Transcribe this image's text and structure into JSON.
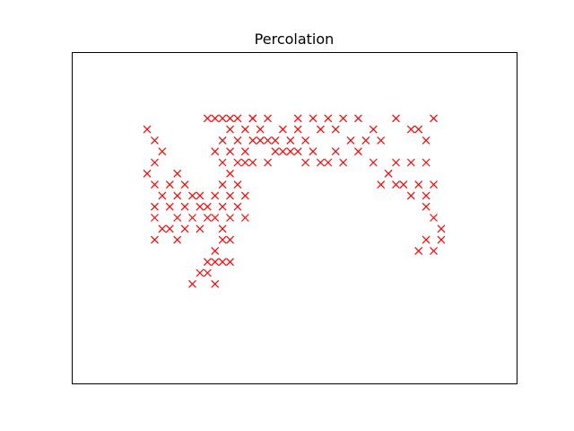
{
  "chart_data": {
    "type": "scatter",
    "title": "Percolation",
    "xlabel": "",
    "ylabel": "",
    "xlim": [
      0,
      59
    ],
    "ylim": [
      0,
      30
    ],
    "marker": "x",
    "marker_color": "#ff0000",
    "grid": false,
    "axis_ticks": false,
    "series": [
      {
        "points": [
          [
            10,
            23
          ],
          [
            11,
            22
          ],
          [
            12,
            21
          ],
          [
            11,
            20
          ],
          [
            10,
            19
          ],
          [
            11,
            18
          ],
          [
            12,
            17
          ],
          [
            11,
            16
          ],
          [
            11,
            15
          ],
          [
            12,
            14
          ],
          [
            11,
            13
          ],
          [
            13,
            18
          ],
          [
            13,
            16
          ],
          [
            13,
            14
          ],
          [
            14,
            19
          ],
          [
            14,
            17
          ],
          [
            15,
            18
          ],
          [
            14,
            15
          ],
          [
            15,
            16
          ],
          [
            14,
            13
          ],
          [
            15,
            14
          ],
          [
            16,
            17
          ],
          [
            16,
            15
          ],
          [
            17,
            17
          ],
          [
            17,
            16
          ],
          [
            17,
            14
          ],
          [
            18,
            16
          ],
          [
            18,
            15
          ],
          [
            19,
            17
          ],
          [
            19,
            15
          ],
          [
            19,
            11
          ],
          [
            18,
            11
          ],
          [
            17,
            10
          ],
          [
            16,
            9
          ],
          [
            20,
            18
          ],
          [
            20,
            16
          ],
          [
            20,
            14
          ],
          [
            21,
            15
          ],
          [
            21,
            13
          ],
          [
            21,
            11
          ],
          [
            20,
            11
          ],
          [
            19,
            12
          ],
          [
            19,
            9
          ],
          [
            18,
            10
          ],
          [
            20,
            13
          ],
          [
            21,
            17
          ],
          [
            21,
            19
          ],
          [
            22,
            16
          ],
          [
            22,
            18
          ],
          [
            22,
            20
          ],
          [
            23,
            15
          ],
          [
            23,
            17
          ],
          [
            23,
            20
          ],
          [
            19,
            21
          ],
          [
            20,
            22
          ],
          [
            21,
            21
          ],
          [
            22,
            22
          ],
          [
            23,
            21
          ],
          [
            24,
            22
          ],
          [
            25,
            23
          ],
          [
            23,
            23
          ],
          [
            24,
            24
          ],
          [
            22,
            24
          ],
          [
            21,
            23
          ],
          [
            21,
            24
          ],
          [
            20,
            24
          ],
          [
            19,
            24
          ],
          [
            18,
            24
          ],
          [
            24,
            20
          ],
          [
            26,
            20
          ],
          [
            26,
            22
          ],
          [
            27,
            21
          ],
          [
            28,
            23
          ],
          [
            29,
            22
          ],
          [
            30,
            21
          ],
          [
            31,
            22
          ],
          [
            32,
            21
          ],
          [
            33,
            23
          ],
          [
            34,
            20
          ],
          [
            37,
            22
          ],
          [
            38,
            21
          ],
          [
            39,
            22
          ],
          [
            40,
            23
          ],
          [
            41,
            22
          ],
          [
            40,
            20
          ],
          [
            42,
            19
          ],
          [
            43,
            20
          ],
          [
            45,
            20
          ],
          [
            47,
            20
          ],
          [
            41,
            18
          ],
          [
            43,
            18
          ],
          [
            44,
            18
          ],
          [
            45,
            17
          ],
          [
            46,
            18
          ],
          [
            47,
            17
          ],
          [
            48,
            18
          ],
          [
            43,
            24
          ],
          [
            45,
            23
          ],
          [
            48,
            24
          ],
          [
            46,
            23
          ],
          [
            47,
            22
          ],
          [
            47,
            16
          ],
          [
            48,
            15
          ],
          [
            49,
            14
          ],
          [
            49,
            13
          ],
          [
            48,
            12
          ],
          [
            47,
            13
          ],
          [
            46,
            12
          ],
          [
            26,
            24
          ],
          [
            30,
            24
          ],
          [
            32,
            24
          ],
          [
            36,
            24
          ],
          [
            38,
            24
          ],
          [
            29,
            21
          ],
          [
            31,
            20
          ],
          [
            33,
            20
          ],
          [
            35,
            21
          ],
          [
            35,
            23
          ],
          [
            34,
            24
          ],
          [
            28,
            21
          ],
          [
            25,
            22
          ],
          [
            30,
            23
          ],
          [
            36,
            20
          ],
          [
            24,
            24
          ],
          [
            27,
            22
          ],
          [
            20,
            20
          ]
        ]
      }
    ]
  }
}
